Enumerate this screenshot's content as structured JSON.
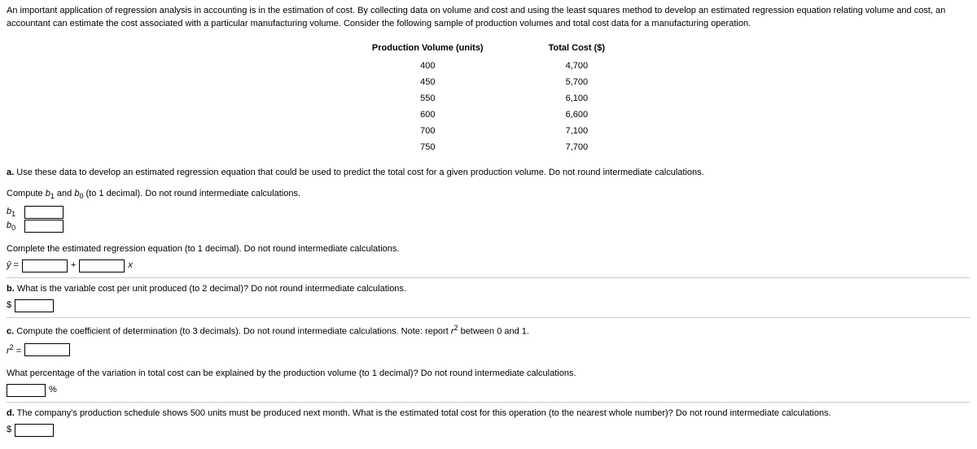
{
  "intro": "An important application of regression analysis in accounting is in the estimation of cost. By collecting data on volume and cost and using the least squares method to develop an estimated regression equation relating volume and cost, an accountant can estimate the cost associated with a particular manufacturing volume. Consider the following sample of production volumes and total cost data for a manufacturing operation.",
  "table": {
    "headers": [
      "Production Volume (units)",
      "Total Cost ($)"
    ],
    "rows": [
      [
        "400",
        "4,700"
      ],
      [
        "450",
        "5,700"
      ],
      [
        "550",
        "6,100"
      ],
      [
        "600",
        "6,600"
      ],
      [
        "700",
        "7,100"
      ],
      [
        "750",
        "7,700"
      ]
    ]
  },
  "a": {
    "label": "a.",
    "text": "Use these data to develop an estimated regression equation that could be used to predict the total cost for a given production volume. Do not round intermediate calculations.",
    "compute_line": "Compute b₁ and b₀ (to 1 decimal). Do not round intermediate calculations.",
    "b1": "b",
    "b1_sub": "1",
    "b0": "b",
    "b0_sub": "0",
    "complete_line": "Complete the estimated regression equation (to 1 decimal). Do not round intermediate calculations.",
    "yhat_prefix": "ŷ =",
    "plus": "+",
    "x": "x"
  },
  "b": {
    "label": "b.",
    "text": "What is the variable cost per unit produced (to 2 decimal)? Do not round intermediate calculations.",
    "dollar": "$"
  },
  "c": {
    "label": "c.",
    "text_pre": "Compute the coefficient of determination (to 3 decimals). Do not round intermediate calculations. Note: report ",
    "r2_inline": "r",
    "r2_sup": "2",
    "text_post": " between 0 and 1.",
    "r2_prefix": "r",
    "r2_prefix_sup": "2",
    "eq": " =",
    "pct_line": "What percentage of the variation in total cost can be explained by the production volume (to 1 decimal)? Do not round intermediate calculations.",
    "pct": "%"
  },
  "d": {
    "label": "d.",
    "text": "The company's production schedule shows 500 units must be produced next month. What is the estimated total cost for this operation (to the nearest whole number)? Do not round intermediate calculations.",
    "dollar": "$"
  }
}
